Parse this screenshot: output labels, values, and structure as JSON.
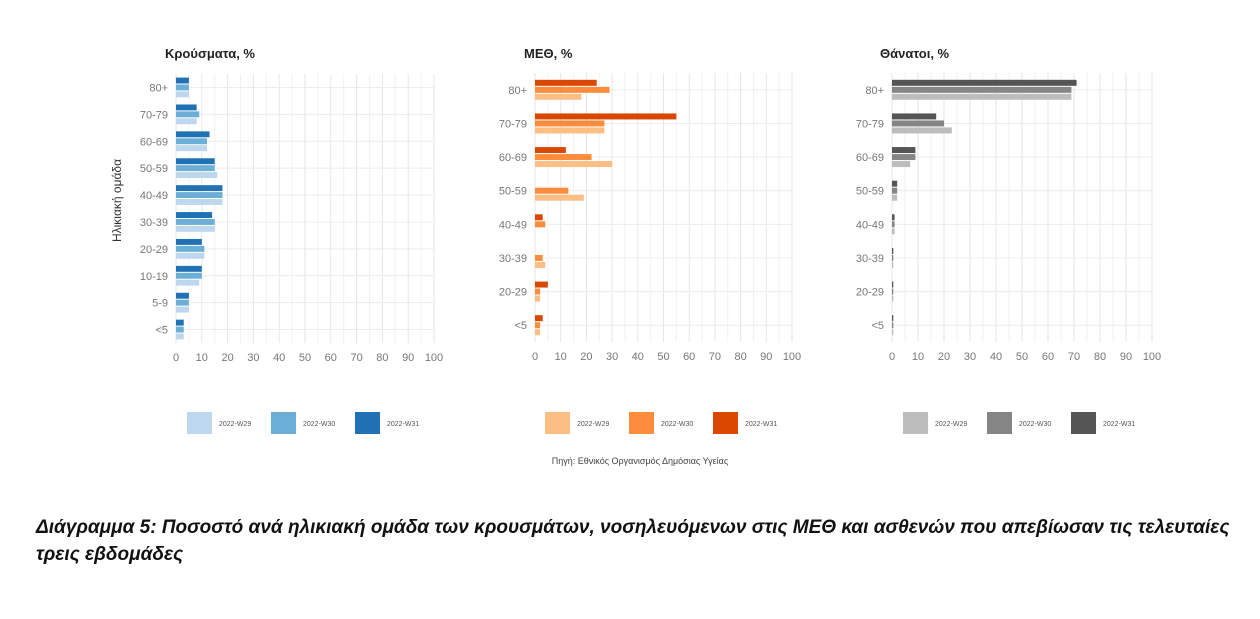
{
  "chart_data": [
    {
      "type": "bar",
      "orientation": "horizontal",
      "title": "Κρούσματα, %",
      "ylabel": "Ηλικιακή ομάδα",
      "xlabel": "",
      "categories": [
        "80+",
        "70-79",
        "60-69",
        "50-59",
        "40-49",
        "30-39",
        "20-29",
        "10-19",
        "5-9",
        "<5"
      ],
      "xlim": [
        0,
        100
      ],
      "xticks": [
        0,
        10,
        20,
        30,
        40,
        50,
        60,
        70,
        80,
        90,
        100
      ],
      "grid": true,
      "legend_position": "bottom",
      "series": [
        {
          "name": "2022-W29",
          "color": "#bdd7ee",
          "values": [
            5,
            8,
            12,
            16,
            18,
            15,
            11,
            9,
            5,
            3
          ]
        },
        {
          "name": "2022-W30",
          "color": "#6baed6",
          "values": [
            5,
            9,
            12,
            15,
            18,
            15,
            11,
            10,
            5,
            3
          ]
        },
        {
          "name": "2022-W31",
          "color": "#2171b5",
          "values": [
            5,
            8,
            13,
            15,
            18,
            14,
            10,
            10,
            5,
            3
          ]
        }
      ]
    },
    {
      "type": "bar",
      "orientation": "horizontal",
      "title": "ΜΕΘ, %",
      "ylabel": "",
      "xlabel": "",
      "categories": [
        "80+",
        "70-79",
        "60-69",
        "50-59",
        "40-49",
        "30-39",
        "20-29",
        "<5"
      ],
      "xlim": [
        0,
        100
      ],
      "xticks": [
        0,
        10,
        20,
        30,
        40,
        50,
        60,
        70,
        80,
        90,
        100
      ],
      "grid": true,
      "legend_position": "bottom",
      "series": [
        {
          "name": "2022-W29",
          "color": "#fdbe85",
          "values": [
            18,
            27,
            30,
            19,
            0,
            4,
            2,
            2
          ]
        },
        {
          "name": "2022-W30",
          "color": "#fd8d3c",
          "values": [
            29,
            27,
            22,
            13,
            4,
            3,
            2,
            2
          ]
        },
        {
          "name": "2022-W31",
          "color": "#d94701",
          "values": [
            24,
            55,
            12,
            0,
            3,
            0,
            5,
            3
          ]
        }
      ]
    },
    {
      "type": "bar",
      "orientation": "horizontal",
      "title": "Θάνατοι, %",
      "ylabel": "",
      "xlabel": "",
      "categories": [
        "80+",
        "70-79",
        "60-69",
        "50-59",
        "40-49",
        "30-39",
        "20-29",
        "<5"
      ],
      "xlim": [
        0,
        100
      ],
      "xticks": [
        0,
        10,
        20,
        30,
        40,
        50,
        60,
        70,
        80,
        90,
        100
      ],
      "grid": true,
      "legend_position": "bottom",
      "series": [
        {
          "name": "2022-W29",
          "color": "#bdbdbd",
          "values": [
            69,
            23,
            7,
            2,
            1,
            0.5,
            0.5,
            0.5
          ]
        },
        {
          "name": "2022-W30",
          "color": "#858585",
          "values": [
            69,
            20,
            9,
            2,
            1,
            0.5,
            0.5,
            0.5
          ]
        },
        {
          "name": "2022-W31",
          "color": "#555555",
          "values": [
            71,
            17,
            9,
            2,
            1,
            0.5,
            0.5,
            0.5
          ]
        }
      ]
    }
  ],
  "source": "Πηγή: Εθνικός Οργανισμός Δημόσιας Υγείας",
  "caption": "Διάγραμμα 5: Ποσοστό ανά ηλικιακή ομάδα των κρουσμάτων, νοσηλευόμενων στις ΜΕΘ και ασθενών που απεβίωσαν τις τελευταίες τρεις εβδομάδες"
}
